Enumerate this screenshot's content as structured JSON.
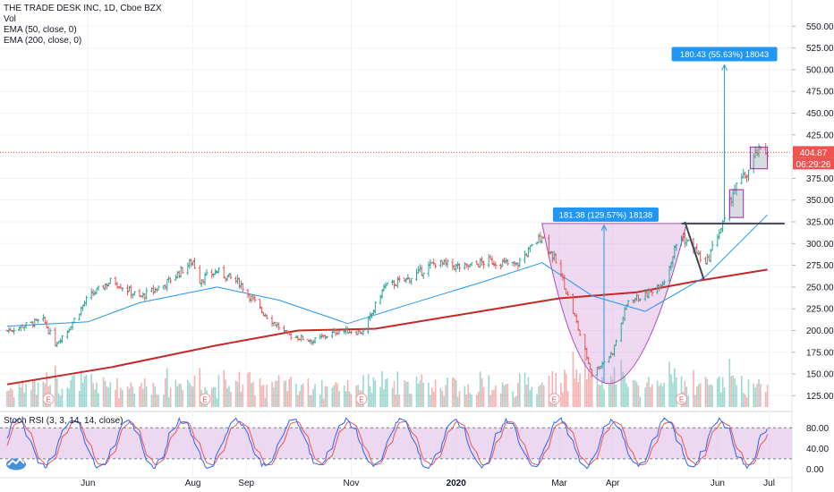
{
  "legend": {
    "title": "THE TRADE DESK INC, 1D, Cboe BZX",
    "vol": "Vol",
    "ema50": "EMA (50, close, 0)",
    "ema200": "EMA (200, close, 0)"
  },
  "rsi_legend": "Stoch RSI (3, 3, 14, 14, close)",
  "price_badge": {
    "price": "404.87",
    "countdown": "06:29:26",
    "color": "#ef5350"
  },
  "measure_1": "181.38 (129.57%) 18138",
  "measure_2": "180.43 (55.63%) 18043",
  "earnings_marker": "E",
  "colors": {
    "up": "#26a69a",
    "down": "#ef5350",
    "ema50": "#2196f3",
    "ema200": "#c62828",
    "rsi_fill": "#e1bee7",
    "cup": "#ce93d8",
    "measure": "#2196f3"
  },
  "chart_data": [
    {
      "type": "ohlc",
      "name": "price",
      "ylim": [
        112,
        575
      ],
      "y_ticks": [
        "550.00",
        "525.00",
        "500.00",
        "475.00",
        "450.00",
        "425.00",
        "400.00",
        "375.00",
        "350.00",
        "325.00",
        "300.00",
        "275.00",
        "250.00",
        "225.00",
        "200.00",
        "175.00",
        "150.00",
        "125.00"
      ],
      "x_ticks": [
        "Jun",
        "Aug",
        "Sep",
        "Nov",
        "2020",
        "Mar",
        "Apr",
        "Jun",
        "Jul"
      ],
      "close_path": [
        [
          "2019-04-15",
          200
        ],
        [
          "2019-05-06",
          212
        ],
        [
          "2019-05-13",
          185
        ],
        [
          "2019-05-20",
          200
        ],
        [
          "2019-06-01",
          238
        ],
        [
          "2019-06-15",
          258
        ],
        [
          "2019-07-01",
          238
        ],
        [
          "2019-07-15",
          252
        ],
        [
          "2019-08-01",
          280
        ],
        [
          "2019-08-05",
          258
        ],
        [
          "2019-08-15",
          268
        ],
        [
          "2019-08-28",
          255
        ],
        [
          "2019-09-10",
          222
        ],
        [
          "2019-09-25",
          195
        ],
        [
          "2019-10-10",
          188
        ],
        [
          "2019-10-25",
          200
        ],
        [
          "2019-11-08",
          198
        ],
        [
          "2019-11-20",
          250
        ],
        [
          "2019-12-05",
          260
        ],
        [
          "2019-12-20",
          278
        ],
        [
          "2020-01-05",
          272
        ],
        [
          "2020-01-20",
          280
        ],
        [
          "2020-02-05",
          275
        ],
        [
          "2020-02-20",
          310
        ],
        [
          "2020-03-01",
          270
        ],
        [
          "2020-03-10",
          215
        ],
        [
          "2020-03-20",
          150
        ],
        [
          "2020-04-01",
          175
        ],
        [
          "2020-04-10",
          235
        ],
        [
          "2020-04-20",
          240
        ],
        [
          "2020-05-01",
          258
        ],
        [
          "2020-05-10",
          310
        ],
        [
          "2020-05-18",
          295
        ],
        [
          "2020-05-25",
          275
        ],
        [
          "2020-06-01",
          310
        ],
        [
          "2020-06-05",
          325
        ],
        [
          "2020-06-10",
          360
        ],
        [
          "2020-06-18",
          380
        ],
        [
          "2020-06-24",
          405
        ],
        [
          "2020-06-30",
          404.87
        ]
      ],
      "ema50": [
        [
          "2019-04-15",
          205
        ],
        [
          "2019-06-01",
          210
        ],
        [
          "2019-07-01",
          232
        ],
        [
          "2019-08-15",
          250
        ],
        [
          "2019-09-20",
          235
        ],
        [
          "2019-10-30",
          208
        ],
        [
          "2019-12-01",
          228
        ],
        [
          "2020-01-15",
          255
        ],
        [
          "2020-02-20",
          278
        ],
        [
          "2020-03-20",
          240
        ],
        [
          "2020-04-20",
          222
        ],
        [
          "2020-05-25",
          262
        ],
        [
          "2020-06-30",
          333
        ]
      ],
      "ema200": [
        [
          "2019-04-15",
          138
        ],
        [
          "2019-06-15",
          158
        ],
        [
          "2019-08-15",
          183
        ],
        [
          "2019-10-01",
          200
        ],
        [
          "2019-11-15",
          202
        ],
        [
          "2020-01-15",
          222
        ],
        [
          "2020-03-01",
          237
        ],
        [
          "2020-04-15",
          244
        ],
        [
          "2020-05-20",
          257
        ],
        [
          "2020-06-30",
          270
        ]
      ],
      "last_price": 404.87,
      "annotations": [
        {
          "label": "181.38 (129.57%) 18138",
          "from": 139.5,
          "to": 321
        },
        {
          "label": "180.43 (55.63%) 18043",
          "from": 325,
          "to": 505.5
        }
      ],
      "resistance": 323
    },
    {
      "type": "line",
      "name": "Stoch RSI",
      "ylim": [
        -15,
        110
      ],
      "y_ticks": [
        "80.00",
        "40.00",
        "0.00"
      ],
      "band": [
        20,
        80
      ]
    }
  ]
}
